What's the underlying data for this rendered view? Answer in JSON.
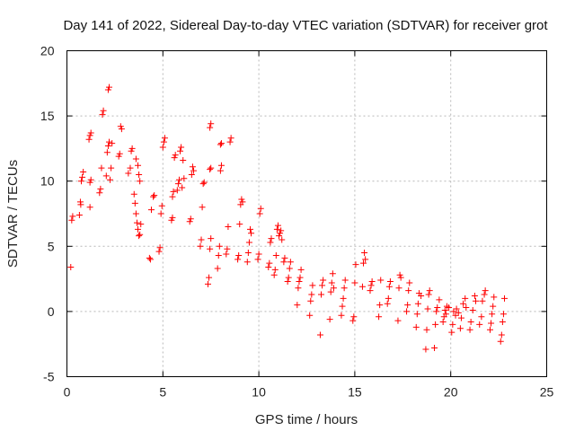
{
  "chart_data": {
    "type": "scatter",
    "title": "Day 141 of 2022, Sidereal Day-to-day VTEC variation (SDTVAR) for receiver grot",
    "xlabel": "GPS time / hours",
    "ylabel": "SDTVAR / TECUs",
    "xlim": [
      0,
      25
    ],
    "ylim": [
      -5,
      20
    ],
    "xticks": [
      "0",
      "5",
      "10",
      "15",
      "20",
      "25"
    ],
    "yticks": [
      "-5",
      "0",
      "5",
      "10",
      "15",
      "20"
    ],
    "grid": true,
    "marker": "plus",
    "series": [
      {
        "name": "SDTVAR",
        "color": "#ff0000",
        "points": [
          [
            0.2,
            3.4
          ],
          [
            0.25,
            7.0
          ],
          [
            0.3,
            7.3
          ],
          [
            0.65,
            7.4
          ],
          [
            0.7,
            8.4
          ],
          [
            0.72,
            8.2
          ],
          [
            0.75,
            10.0
          ],
          [
            0.8,
            10.3
          ],
          [
            0.85,
            10.7
          ],
          [
            1.2,
            8.0
          ],
          [
            1.2,
            9.9
          ],
          [
            1.25,
            10.1
          ],
          [
            1.15,
            13.2
          ],
          [
            1.2,
            13.5
          ],
          [
            1.25,
            13.7
          ],
          [
            1.7,
            9.1
          ],
          [
            1.75,
            9.4
          ],
          [
            1.8,
            11.0
          ],
          [
            1.85,
            15.1
          ],
          [
            1.9,
            15.4
          ],
          [
            2.05,
            10.4
          ],
          [
            2.1,
            12.2
          ],
          [
            2.15,
            12.7
          ],
          [
            2.2,
            13.0
          ],
          [
            2.15,
            17.0
          ],
          [
            2.2,
            17.2
          ],
          [
            2.25,
            10.1
          ],
          [
            2.3,
            11.0
          ],
          [
            2.35,
            12.9
          ],
          [
            2.7,
            11.9
          ],
          [
            2.75,
            12.1
          ],
          [
            2.8,
            14.2
          ],
          [
            2.85,
            14.0
          ],
          [
            3.2,
            10.6
          ],
          [
            3.3,
            11.0
          ],
          [
            3.35,
            12.3
          ],
          [
            3.4,
            12.5
          ],
          [
            3.5,
            9.0
          ],
          [
            3.55,
            8.3
          ],
          [
            3.6,
            7.5
          ],
          [
            3.65,
            6.8
          ],
          [
            3.7,
            6.3
          ],
          [
            3.75,
            5.8
          ],
          [
            3.8,
            5.9
          ],
          [
            3.6,
            11.7
          ],
          [
            3.7,
            11.2
          ],
          [
            3.75,
            10.5
          ],
          [
            3.8,
            10.0
          ],
          [
            3.85,
            6.7
          ],
          [
            4.3,
            4.1
          ],
          [
            4.35,
            4.0
          ],
          [
            4.4,
            7.8
          ],
          [
            4.5,
            8.8
          ],
          [
            4.55,
            8.9
          ],
          [
            4.8,
            4.6
          ],
          [
            4.85,
            4.9
          ],
          [
            4.9,
            7.5
          ],
          [
            4.95,
            8.1
          ],
          [
            5.0,
            12.6
          ],
          [
            5.05,
            13.0
          ],
          [
            5.1,
            13.3
          ],
          [
            5.45,
            7.0
          ],
          [
            5.5,
            7.2
          ],
          [
            5.5,
            8.8
          ],
          [
            5.55,
            9.2
          ],
          [
            5.6,
            11.8
          ],
          [
            5.65,
            12.0
          ],
          [
            5.75,
            9.3
          ],
          [
            5.8,
            9.8
          ],
          [
            5.85,
            10.1
          ],
          [
            5.9,
            12.3
          ],
          [
            5.95,
            12.6
          ],
          [
            6.0,
            9.5
          ],
          [
            6.05,
            11.6
          ],
          [
            6.1,
            10.2
          ],
          [
            6.4,
            6.9
          ],
          [
            6.45,
            7.1
          ],
          [
            6.5,
            10.5
          ],
          [
            6.55,
            11.1
          ],
          [
            6.6,
            10.8
          ],
          [
            6.95,
            5.0
          ],
          [
            7.0,
            5.5
          ],
          [
            7.05,
            8.0
          ],
          [
            7.1,
            9.8
          ],
          [
            7.15,
            9.9
          ],
          [
            7.35,
            2.1
          ],
          [
            7.4,
            2.6
          ],
          [
            7.45,
            4.8
          ],
          [
            7.5,
            5.6
          ],
          [
            7.45,
            10.9
          ],
          [
            7.5,
            11.0
          ],
          [
            7.45,
            14.1
          ],
          [
            7.5,
            14.4
          ],
          [
            7.85,
            3.3
          ],
          [
            7.9,
            4.3
          ],
          [
            7.95,
            5.0
          ],
          [
            8.0,
            10.8
          ],
          [
            8.05,
            11.2
          ],
          [
            8.0,
            12.8
          ],
          [
            8.05,
            12.9
          ],
          [
            8.3,
            4.4
          ],
          [
            8.35,
            4.8
          ],
          [
            8.4,
            6.5
          ],
          [
            8.5,
            13.0
          ],
          [
            8.55,
            13.3
          ],
          [
            8.9,
            4.0
          ],
          [
            8.95,
            4.3
          ],
          [
            9.0,
            6.7
          ],
          [
            9.05,
            8.2
          ],
          [
            9.1,
            8.6
          ],
          [
            9.15,
            8.4
          ],
          [
            9.4,
            3.8
          ],
          [
            9.45,
            4.5
          ],
          [
            9.5,
            5.3
          ],
          [
            9.55,
            6.3
          ],
          [
            9.6,
            6.0
          ],
          [
            9.95,
            4.0
          ],
          [
            10.0,
            4.4
          ],
          [
            10.05,
            7.5
          ],
          [
            10.1,
            7.9
          ],
          [
            10.5,
            3.4
          ],
          [
            10.55,
            3.7
          ],
          [
            10.6,
            5.3
          ],
          [
            10.65,
            5.6
          ],
          [
            10.8,
            2.8
          ],
          [
            10.85,
            3.2
          ],
          [
            10.9,
            4.3
          ],
          [
            10.95,
            6.3
          ],
          [
            11.0,
            6.6
          ],
          [
            11.05,
            5.8
          ],
          [
            11.1,
            6.0
          ],
          [
            11.15,
            6.2
          ],
          [
            11.2,
            5.5
          ],
          [
            11.3,
            3.8
          ],
          [
            11.35,
            4.1
          ],
          [
            11.5,
            2.3
          ],
          [
            11.55,
            2.6
          ],
          [
            11.6,
            3.3
          ],
          [
            11.65,
            3.8
          ],
          [
            12.0,
            0.5
          ],
          [
            12.05,
            1.8
          ],
          [
            12.1,
            2.3
          ],
          [
            12.15,
            2.6
          ],
          [
            12.2,
            3.2
          ],
          [
            12.65,
            -0.3
          ],
          [
            12.7,
            0.8
          ],
          [
            12.75,
            1.3
          ],
          [
            12.8,
            2.0
          ],
          [
            13.2,
            -1.8
          ],
          [
            13.25,
            1.3
          ],
          [
            13.3,
            2.0
          ],
          [
            13.35,
            2.4
          ],
          [
            13.7,
            -0.6
          ],
          [
            13.75,
            1.5
          ],
          [
            13.8,
            2.2
          ],
          [
            13.85,
            2.9
          ],
          [
            13.9,
            1.8
          ],
          [
            14.3,
            -0.3
          ],
          [
            14.35,
            0.4
          ],
          [
            14.4,
            1.0
          ],
          [
            14.45,
            1.8
          ],
          [
            14.5,
            2.4
          ],
          [
            14.9,
            -0.7
          ],
          [
            14.95,
            -0.4
          ],
          [
            15.0,
            2.2
          ],
          [
            15.05,
            3.6
          ],
          [
            15.4,
            1.9
          ],
          [
            15.45,
            3.7
          ],
          [
            15.5,
            4.5
          ],
          [
            15.55,
            4.0
          ],
          [
            15.8,
            1.6
          ],
          [
            15.85,
            2.0
          ],
          [
            15.9,
            2.3
          ],
          [
            16.25,
            -0.4
          ],
          [
            16.3,
            0.5
          ],
          [
            16.35,
            2.4
          ],
          [
            16.7,
            0.6
          ],
          [
            16.75,
            1.0
          ],
          [
            16.8,
            1.9
          ],
          [
            16.85,
            2.3
          ],
          [
            17.25,
            -0.7
          ],
          [
            17.3,
            1.8
          ],
          [
            17.35,
            2.8
          ],
          [
            17.4,
            2.6
          ],
          [
            17.7,
            0.0
          ],
          [
            17.75,
            0.5
          ],
          [
            17.8,
            1.6
          ],
          [
            17.85,
            2.2
          ],
          [
            18.2,
            -1.2
          ],
          [
            18.25,
            -0.2
          ],
          [
            18.3,
            0.6
          ],
          [
            18.35,
            1.4
          ],
          [
            18.45,
            1.2
          ],
          [
            18.7,
            -2.9
          ],
          [
            18.75,
            -1.4
          ],
          [
            18.8,
            0.2
          ],
          [
            18.85,
            1.3
          ],
          [
            18.9,
            1.6
          ],
          [
            19.15,
            -2.8
          ],
          [
            19.2,
            -1.0
          ],
          [
            19.25,
            0.0
          ],
          [
            19.3,
            0.3
          ],
          [
            19.4,
            0.9
          ],
          [
            19.6,
            -0.8
          ],
          [
            19.65,
            -0.4
          ],
          [
            19.7,
            0.1
          ],
          [
            19.75,
            -0.2
          ],
          [
            19.8,
            0.4
          ],
          [
            19.9,
            0.3
          ],
          [
            20.05,
            -1.6
          ],
          [
            20.1,
            -1.0
          ],
          [
            20.15,
            0.0
          ],
          [
            20.25,
            -0.3
          ],
          [
            20.3,
            0.2
          ],
          [
            20.4,
            -0.1
          ],
          [
            20.5,
            -1.3
          ],
          [
            20.55,
            -0.5
          ],
          [
            20.65,
            0.6
          ],
          [
            20.75,
            1.0
          ],
          [
            20.8,
            0.3
          ],
          [
            21.0,
            -1.4
          ],
          [
            21.05,
            -0.8
          ],
          [
            21.15,
            0.1
          ],
          [
            21.25,
            1.2
          ],
          [
            21.3,
            0.8
          ],
          [
            21.5,
            -1.0
          ],
          [
            21.6,
            -0.4
          ],
          [
            21.65,
            0.8
          ],
          [
            21.75,
            1.3
          ],
          [
            21.8,
            1.6
          ],
          [
            22.05,
            -1.4
          ],
          [
            22.1,
            -0.9
          ],
          [
            22.15,
            -0.2
          ],
          [
            22.2,
            0.4
          ],
          [
            22.25,
            1.1
          ],
          [
            22.6,
            -2.3
          ],
          [
            22.65,
            -1.8
          ],
          [
            22.7,
            -0.8
          ],
          [
            22.75,
            -0.2
          ],
          [
            22.8,
            1.0
          ]
        ]
      }
    ]
  }
}
